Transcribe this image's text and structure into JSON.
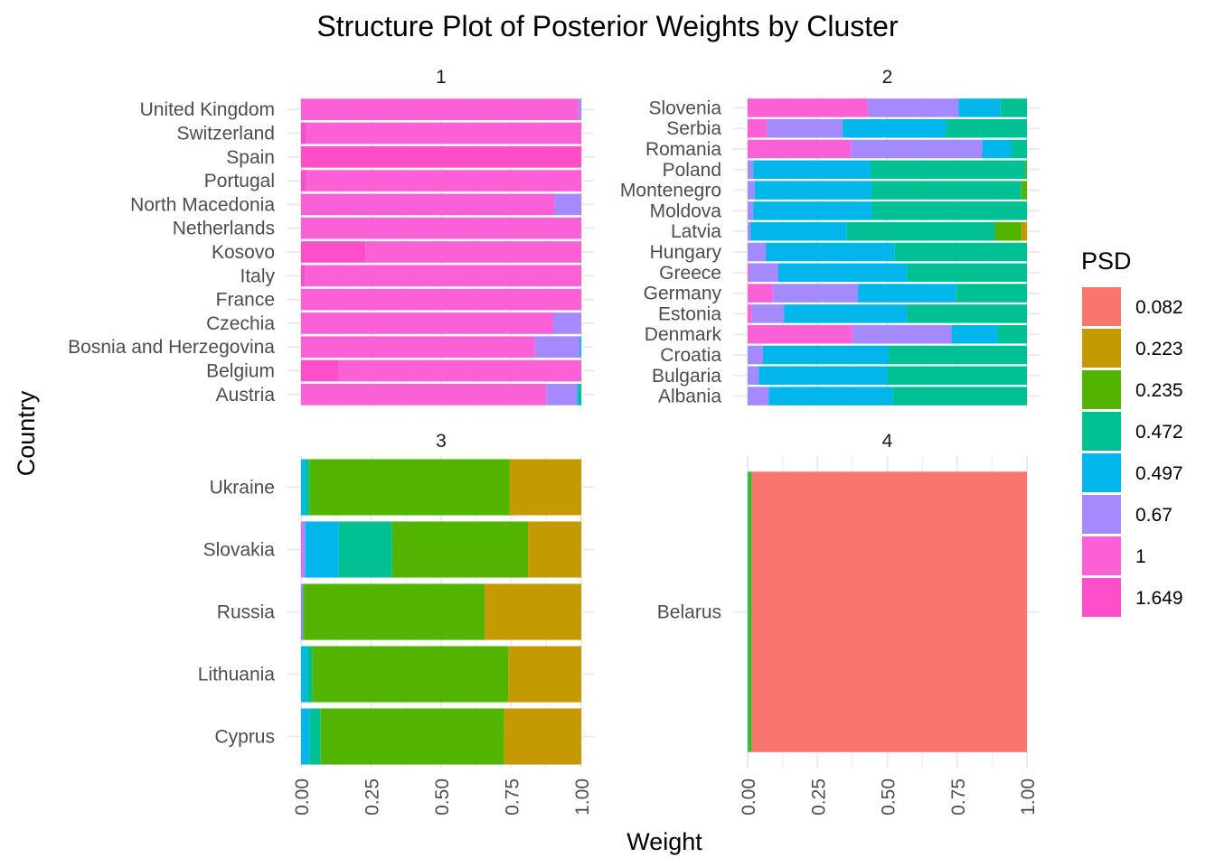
{
  "chart_data": {
    "type": "bar",
    "orientation": "horizontal",
    "stacked": true,
    "title": "Structure Plot of Posterior Weights by Cluster",
    "xlabel": "Weight",
    "ylabel": "Country",
    "xlim": [
      0,
      1
    ],
    "x_ticks": [
      "0.00",
      "0.25",
      "0.50",
      "0.75",
      "1.00"
    ],
    "grid": true,
    "legend": {
      "title": "PSD",
      "position": "right",
      "order": [
        "0.082",
        "0.223",
        "0.235",
        "0.472",
        "0.497",
        "0.67",
        "1",
        "1.649"
      ],
      "colors": {
        "0.082": "#F8766D",
        "0.223": "#C49A00",
        "0.235": "#53B400",
        "0.472": "#00C094",
        "0.497": "#00B6EB",
        "0.67": "#A58AFF",
        "1": "#FB61D7",
        "1.649": "#FF4FC8"
      }
    },
    "stack_order": [
      "1.649",
      "1",
      "0.67",
      "0.497",
      "0.472",
      "0.235",
      "0.223",
      "0.082"
    ],
    "facets": [
      {
        "label": "1",
        "countries": [
          {
            "name": "United Kingdom",
            "weights": {
              "1": 0.99,
              "0.67": 0.01
            }
          },
          {
            "name": "Switzerland",
            "weights": {
              "1.649": 0.02,
              "1": 0.98
            }
          },
          {
            "name": "Spain",
            "weights": {
              "1.649": 1.0
            }
          },
          {
            "name": "Portugal",
            "weights": {
              "1.649": 0.02,
              "1": 0.98
            }
          },
          {
            "name": "North Macedonia",
            "weights": {
              "1": 0.905,
              "0.67": 0.095
            }
          },
          {
            "name": "Netherlands",
            "weights": {
              "1": 1.0
            }
          },
          {
            "name": "Kosovo",
            "weights": {
              "1.649": 0.23,
              "1": 0.77
            }
          },
          {
            "name": "Italy",
            "weights": {
              "1.649": 0.015,
              "1": 0.985
            }
          },
          {
            "name": "France",
            "weights": {
              "1": 1.0
            }
          },
          {
            "name": "Czechia",
            "weights": {
              "1": 0.9,
              "0.67": 0.1
            }
          },
          {
            "name": "Bosnia and Herzegovina",
            "weights": {
              "1": 0.835,
              "0.67": 0.16,
              "0.497": 0.005
            }
          },
          {
            "name": "Belgium",
            "weights": {
              "1.649": 0.135,
              "1": 0.865
            }
          },
          {
            "name": "Austria",
            "weights": {
              "1": 0.875,
              "0.67": 0.11,
              "0.497": 0.005,
              "0.472": 0.01
            }
          }
        ]
      },
      {
        "label": "2",
        "countries": [
          {
            "name": "Slovenia",
            "weights": {
              "1": 0.43,
              "0.67": 0.325,
              "0.497": 0.15,
              "0.472": 0.095
            }
          },
          {
            "name": "Serbia",
            "weights": {
              "1": 0.07,
              "0.67": 0.27,
              "0.497": 0.37,
              "0.472": 0.29
            }
          },
          {
            "name": "Romania",
            "weights": {
              "1": 0.37,
              "0.67": 0.47,
              "0.497": 0.105,
              "0.472": 0.055
            }
          },
          {
            "name": "Poland",
            "weights": {
              "0.67": 0.02,
              "0.497": 0.42,
              "0.472": 0.555,
              "0.235": 0.005
            }
          },
          {
            "name": "Montenegro",
            "weights": {
              "0.67": 0.025,
              "0.497": 0.42,
              "0.472": 0.535,
              "0.235": 0.02
            }
          },
          {
            "name": "Moldova",
            "weights": {
              "0.67": 0.02,
              "0.497": 0.425,
              "0.472": 0.555
            }
          },
          {
            "name": "Latvia",
            "weights": {
              "0.67": 0.01,
              "0.497": 0.345,
              "0.472": 0.53,
              "0.235": 0.095,
              "0.223": 0.02
            }
          },
          {
            "name": "Hungary",
            "weights": {
              "0.67": 0.065,
              "0.497": 0.46,
              "0.472": 0.475
            }
          },
          {
            "name": "Greece",
            "weights": {
              "1": 0.005,
              "0.67": 0.105,
              "0.497": 0.46,
              "0.472": 0.43
            }
          },
          {
            "name": "Germany",
            "weights": {
              "1": 0.09,
              "0.67": 0.305,
              "0.497": 0.35,
              "0.472": 0.255
            }
          },
          {
            "name": "Estonia",
            "weights": {
              "1": 0.015,
              "0.67": 0.115,
              "0.497": 0.44,
              "0.472": 0.43
            }
          },
          {
            "name": "Denmark",
            "weights": {
              "1": 0.375,
              "0.67": 0.355,
              "0.497": 0.165,
              "0.472": 0.105
            }
          },
          {
            "name": "Croatia",
            "weights": {
              "0.67": 0.055,
              "0.497": 0.45,
              "0.472": 0.495
            }
          },
          {
            "name": "Bulgaria",
            "weights": {
              "0.67": 0.04,
              "0.497": 0.46,
              "0.472": 0.5
            }
          },
          {
            "name": "Albania",
            "weights": {
              "0.67": 0.075,
              "0.497": 0.445,
              "0.472": 0.48
            }
          }
        ]
      },
      {
        "label": "3",
        "countries": [
          {
            "name": "Ukraine",
            "weights": {
              "0.497": 0.015,
              "0.472": 0.015,
              "0.235": 0.715,
              "0.223": 0.255
            }
          },
          {
            "name": "Slovakia",
            "weights": {
              "1": 0.005,
              "0.67": 0.01,
              "0.497": 0.12,
              "0.472": 0.19,
              "0.235": 0.485,
              "0.223": 0.19
            }
          },
          {
            "name": "Russia",
            "weights": {
              "0.497": 0.002,
              "0.472": 0.003,
              "0.235": 0.645,
              "0.223": 0.345,
              "1": 0.005
            }
          },
          {
            "name": "Lithuania",
            "weights": {
              "0.497": 0.02,
              "0.472": 0.02,
              "0.235": 0.7,
              "0.223": 0.26
            }
          },
          {
            "name": "Cyprus",
            "weights": {
              "0.497": 0.03,
              "0.472": 0.04,
              "0.235": 0.655,
              "0.223": 0.275
            }
          }
        ]
      },
      {
        "label": "4",
        "countries": [
          {
            "name": "Belarus",
            "weights": {
              "0.472": 0.005,
              "0.235": 0.01,
              "0.082": 0.985
            }
          }
        ]
      }
    ]
  }
}
